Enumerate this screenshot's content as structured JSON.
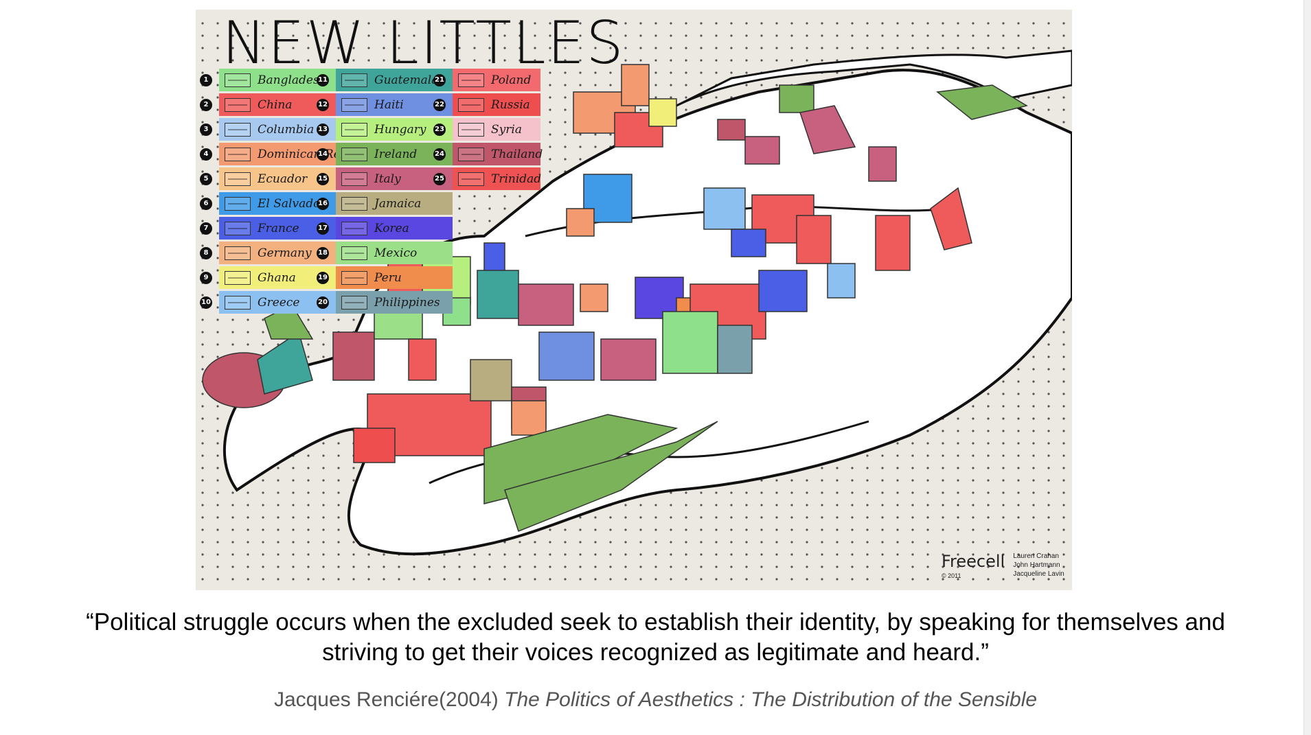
{
  "map": {
    "title": "NEW LITTLES",
    "legend": [
      {
        "num": "1",
        "country": "Bangladesh",
        "color": "#8ee08a"
      },
      {
        "num": "2",
        "country": "China",
        "color": "#ef5b5b"
      },
      {
        "num": "3",
        "country": "Columbia",
        "color": "#a7c8ef"
      },
      {
        "num": "4",
        "country": "Dominican Rep",
        "color": "#f39a70"
      },
      {
        "num": "5",
        "country": "Ecuador",
        "color": "#f7c48a"
      },
      {
        "num": "6",
        "country": "El Salvador",
        "color": "#3f9be8"
      },
      {
        "num": "7",
        "country": "France",
        "color": "#4a5fe6"
      },
      {
        "num": "8",
        "country": "Germany",
        "color": "#f3b17f"
      },
      {
        "num": "9",
        "country": "Ghana",
        "color": "#f2ee7a"
      },
      {
        "num": "10",
        "country": "Greece",
        "color": "#8cc0f0"
      },
      {
        "num": "11",
        "country": "Guatemala",
        "color": "#3fa59b"
      },
      {
        "num": "12",
        "country": "Haiti",
        "color": "#6f8fe0"
      },
      {
        "num": "13",
        "country": "Hungary",
        "color": "#b7ef7f"
      },
      {
        "num": "14",
        "country": "Ireland",
        "color": "#7ab35a"
      },
      {
        "num": "15",
        "country": "Italy",
        "color": "#c8607f"
      },
      {
        "num": "16",
        "country": "Jamaica",
        "color": "#b7ad80"
      },
      {
        "num": "17",
        "country": "Korea",
        "color": "#5a46e0"
      },
      {
        "num": "18",
        "country": "Mexico",
        "color": "#9be088"
      },
      {
        "num": "19",
        "country": "Peru",
        "color": "#f08c4c"
      },
      {
        "num": "20",
        "country": "Philippines",
        "color": "#7aa0ab"
      },
      {
        "num": "21",
        "country": "Poland",
        "color": "#f2696e"
      },
      {
        "num": "22",
        "country": "Russia",
        "color": "#ee4e4e"
      },
      {
        "num": "23",
        "country": "Syria",
        "color": "#f5c2cc"
      },
      {
        "num": "24",
        "country": "Thailand",
        "color": "#c0566a"
      },
      {
        "num": "25",
        "country": "Trinidad",
        "color": "#ee5252"
      }
    ],
    "credit": {
      "brand": "Freecell",
      "year": "© 2011",
      "authors": [
        "Lauren Crahan",
        "John Hartmann",
        "Jacqueline Lavin"
      ]
    }
  },
  "caption": {
    "quote_line1": "“Political struggle occurs when the excluded seek to establish their identity, by speaking for themselves and",
    "quote_line2": "striving to get their voices recognized as legitimate and heard.”",
    "author": "Jacques Renciére(2004) ",
    "work": "The Politics of Aesthetics : The Distribution of the Sensible"
  }
}
